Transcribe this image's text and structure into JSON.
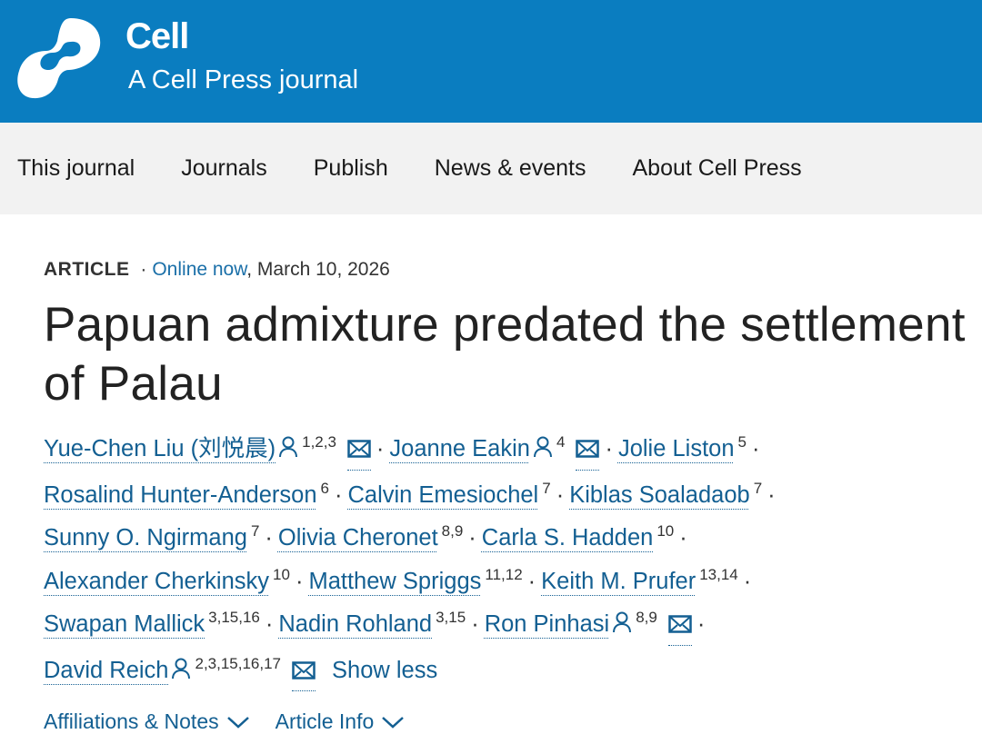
{
  "header": {
    "brand": "Cell",
    "subtitle": "A Cell Press journal",
    "color": "#0a7dc0"
  },
  "nav": [
    "This journal",
    "Journals",
    "Publish",
    "News & events",
    "About Cell Press"
  ],
  "article": {
    "type": "ARTICLE",
    "separator": "·",
    "online": "Online now",
    "date": ", March 10, 2026",
    "title_line1": "Papuan admixture predated the settlement",
    "title_line2": "of Palau"
  },
  "author_lines": [
    [
      {
        "name": "Yue-Chen Liu (刘悦晨)",
        "sup": "1,2,3",
        "person": true,
        "mail": true
      },
      {
        "name": "Joanne Eakin",
        "sup": "4",
        "person": true,
        "mail": true
      },
      {
        "name": "Jolie Liston",
        "sup": "5"
      }
    ],
    [
      {
        "name": "Rosalind Hunter-Anderson",
        "sup": "6"
      },
      {
        "name": "Calvin Emesiochel",
        "sup": "7"
      },
      {
        "name": "Kiblas Soaladaob",
        "sup": "7"
      }
    ],
    [
      {
        "name": "Sunny O. Ngirmang",
        "sup": "7"
      },
      {
        "name": "Olivia Cheronet",
        "sup": "8,9"
      },
      {
        "name": "Carla S. Hadden",
        "sup": "10"
      }
    ],
    [
      {
        "name": "Alexander Cherkinsky",
        "sup": "10"
      },
      {
        "name": "Matthew Spriggs",
        "sup": "11,12"
      },
      {
        "name": "Keith M. Prufer",
        "sup": "13,14"
      }
    ],
    [
      {
        "name": "Swapan Mallick",
        "sup": "3,15,16"
      },
      {
        "name": "Nadin Rohland",
        "sup": "3,15"
      },
      {
        "name": "Ron Pinhasi",
        "sup": "8,9",
        "person": true,
        "mail": true
      }
    ],
    [
      {
        "name": "David Reich",
        "sup": "2,3,15,16,17",
        "person": true,
        "mail": true,
        "last": true
      }
    ]
  ],
  "show_less": "Show less",
  "tabs": [
    "Affiliations & Notes",
    "Article Info"
  ]
}
